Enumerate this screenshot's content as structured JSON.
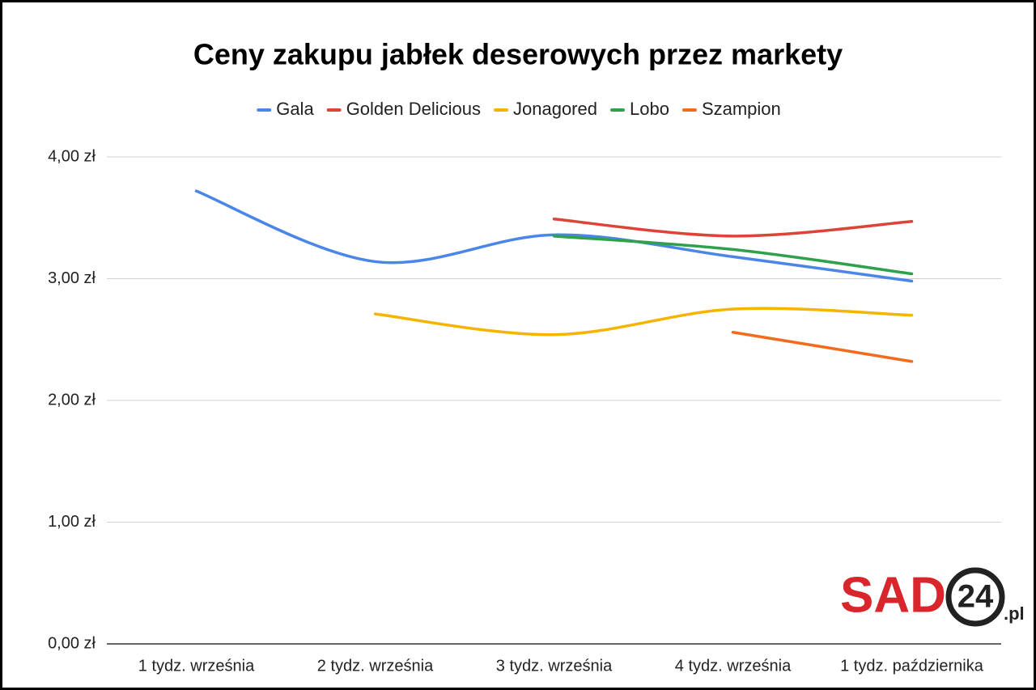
{
  "chart_data": {
    "type": "line",
    "title": "Ceny zakupu jabłek deserowych przez markety",
    "categories": [
      "1 tydz. września",
      "2 tydz. września",
      "3 tydz. września",
      "4 tydz. września",
      "1 tydz. października"
    ],
    "series": [
      {
        "name": "Gala",
        "color": "#4a86e8",
        "values": [
          3.72,
          3.14,
          3.36,
          3.18,
          2.98
        ]
      },
      {
        "name": "Golden Delicious",
        "color": "#dc4437",
        "values": [
          null,
          null,
          3.49,
          3.35,
          3.47
        ]
      },
      {
        "name": "Jonagored",
        "color": "#f4b400",
        "values": [
          null,
          2.71,
          2.54,
          2.75,
          2.7
        ]
      },
      {
        "name": "Lobo",
        "color": "#2fa14d",
        "values": [
          null,
          null,
          3.35,
          3.24,
          3.04
        ]
      },
      {
        "name": "Szampion",
        "color": "#f26b1d",
        "values": [
          null,
          null,
          null,
          2.56,
          2.32
        ]
      }
    ],
    "ylim": [
      0,
      4
    ],
    "yticks": [
      {
        "value": 0,
        "label": "0,00 zł"
      },
      {
        "value": 1,
        "label": "1,00 zł"
      },
      {
        "value": 2,
        "label": "2,00 zł"
      },
      {
        "value": 3,
        "label": "3,00 zł"
      },
      {
        "value": 4,
        "label": "4,00 zł"
      }
    ],
    "grid": true,
    "smooth": true,
    "legend": "top",
    "logo": {
      "main": "SAD",
      "number": "24",
      "suffix": ".pl"
    }
  }
}
